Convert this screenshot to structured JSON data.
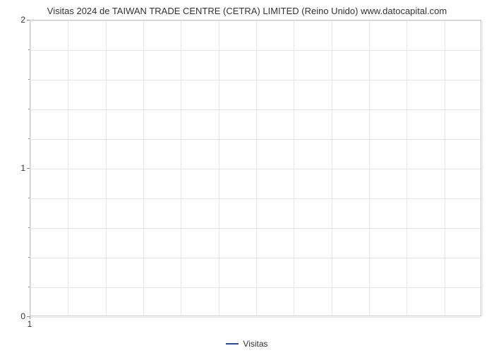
{
  "chart": {
    "type": "line",
    "title": "Visitas 2024 de TAIWAN TRADE CENTRE (CETRA) LIMITED (Reino Unido) www.datocapital.com",
    "title_fontsize": 13,
    "title_color": "#333333",
    "background_color": "#ffffff",
    "plot_border_color": "#c9c9c9",
    "grid_color": "#e6e6e6",
    "tick_color": "#8a8a8a",
    "tick_label_color": "#333333",
    "tick_label_fontsize": 12,
    "x": {
      "min": 1,
      "max": 13,
      "tick_values": [
        1
      ],
      "tick_labels": [
        "1"
      ],
      "gridline_values": [
        1,
        2,
        3,
        4,
        5,
        6,
        7,
        8,
        9,
        10,
        11,
        12,
        13
      ]
    },
    "y": {
      "min": 0,
      "max": 2,
      "tick_values": [
        0,
        1,
        2
      ],
      "tick_labels": [
        "0",
        "1",
        "2"
      ],
      "minor_tick_values": [
        0.2,
        0.4,
        0.6,
        0.8,
        1.2,
        1.4,
        1.6,
        1.8
      ],
      "gridline_values": [
        0,
        0.2,
        0.4,
        0.6,
        0.8,
        1.0,
        1.2,
        1.4,
        1.6,
        1.8,
        2.0
      ]
    },
    "series": [
      {
        "name": "Visitas",
        "color": "#2947b3",
        "line_width": 2,
        "data": []
      }
    ],
    "legend": {
      "position": "bottom",
      "items": [
        {
          "label": "Visitas",
          "color": "#2947b3"
        }
      ]
    }
  }
}
